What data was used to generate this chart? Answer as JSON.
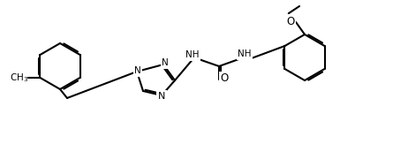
{
  "bg": "#ffffff",
  "lw": 1.5,
  "lw2": 2.8,
  "font_size": 7.5,
  "atoms": {
    "N_label": "N",
    "NH_label": "NH",
    "O_label": "O",
    "N2_label": "N",
    "CH3_label": "CH₃",
    "O2_label": "O"
  }
}
